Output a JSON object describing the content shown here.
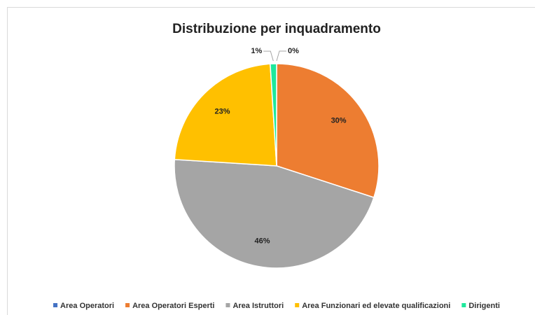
{
  "chart_data": {
    "type": "pie",
    "title": "Distribuzione per inquadramento",
    "categories": [
      "Area Operatori",
      "Area Operatori Esperti",
      "Area Istruttori",
      "Area Funzionari ed elevate qualificazioni",
      "Dirigenti"
    ],
    "values": [
      0,
      30,
      46,
      23,
      1
    ],
    "value_labels": [
      "0%",
      "30%",
      "46%",
      "23%",
      "1%"
    ],
    "colors": [
      "#4472c4",
      "#ed7d31",
      "#a5a5a5",
      "#ffc000",
      "#1ee89c"
    ],
    "legend": "bottom"
  }
}
